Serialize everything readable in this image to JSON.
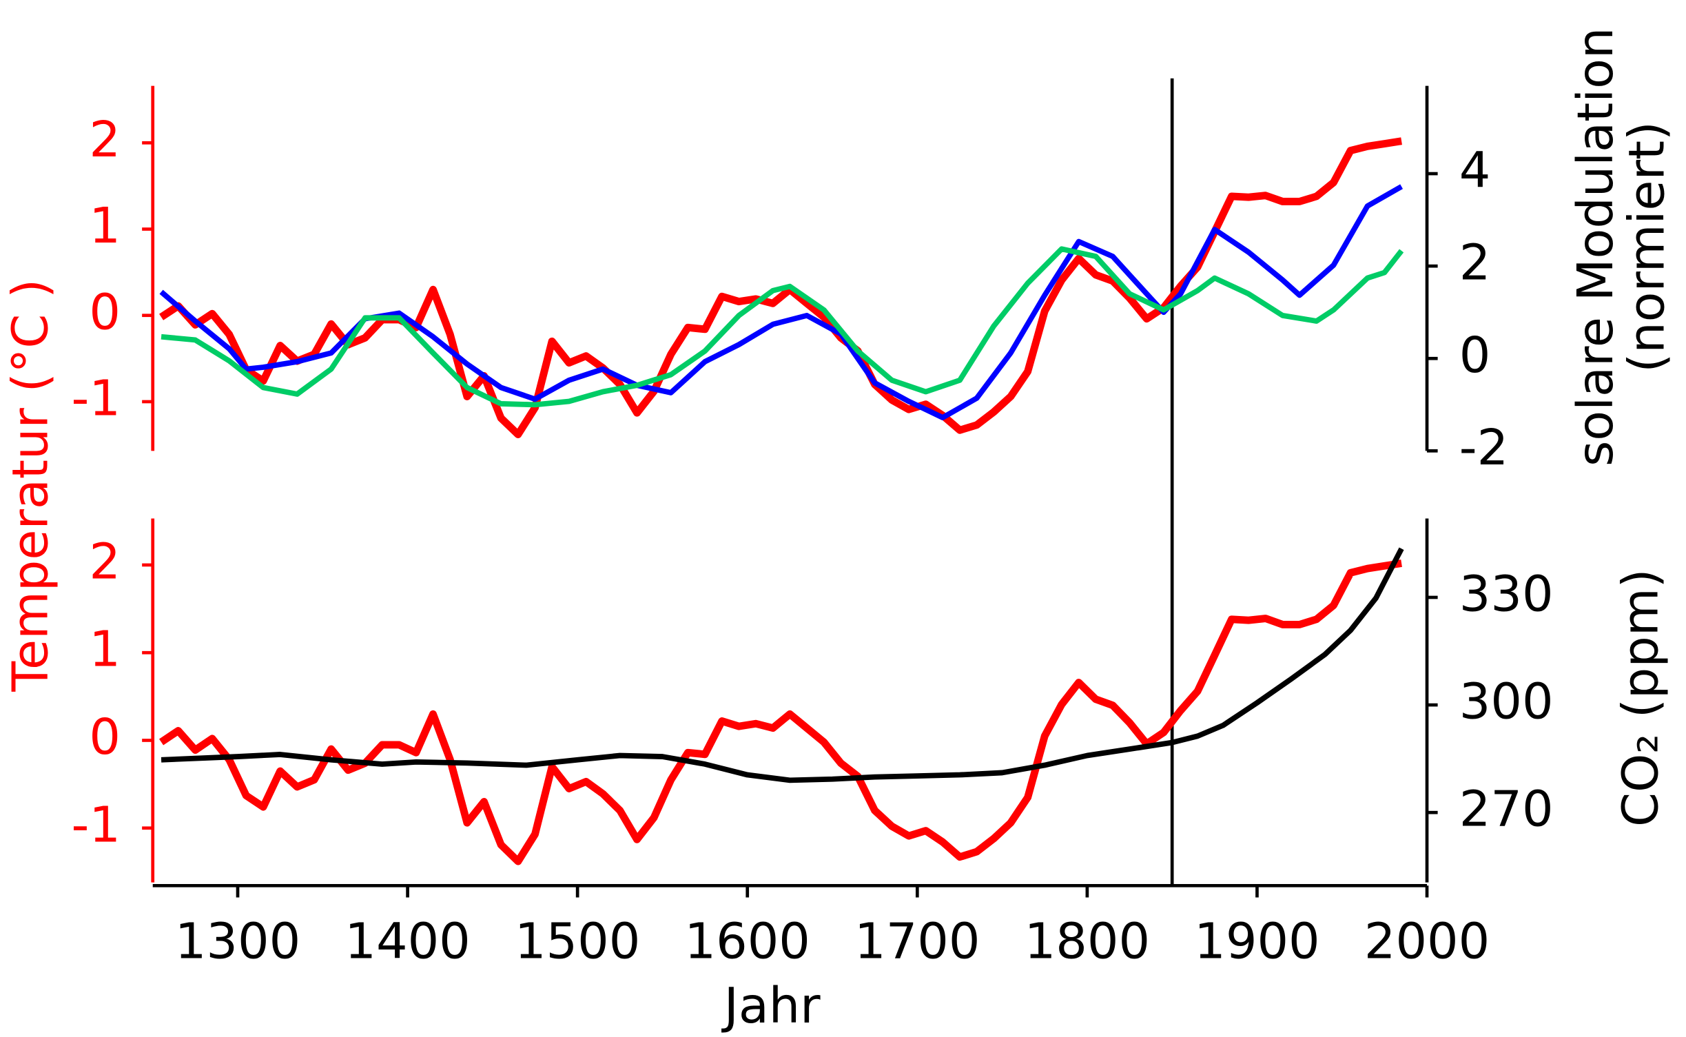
{
  "chart_data": [
    {
      "type": "line",
      "ylabel": "Temperatur (°C )",
      "y2label": [
        "solare Modulation",
        "(normiert)"
      ],
      "xlim": [
        1250,
        2000
      ],
      "ylim": [
        -1.57,
        2.66
      ],
      "yticks": [
        -1,
        0,
        1,
        2
      ],
      "y2lim": [
        -2,
        5.9
      ],
      "y2ticks": [
        -2,
        0,
        2,
        4
      ],
      "vline": 1850,
      "series": [
        {
          "name": "Temperatur",
          "color": "#ff0000",
          "x": [
            1255,
            1265,
            1275,
            1285,
            1295,
            1305,
            1315,
            1325,
            1335,
            1345,
            1355,
            1365,
            1375,
            1385,
            1395,
            1405,
            1415,
            1425,
            1435,
            1445,
            1455,
            1465,
            1475,
            1485,
            1495,
            1505,
            1515,
            1525,
            1535,
            1545,
            1555,
            1565,
            1575,
            1585,
            1595,
            1605,
            1615,
            1625,
            1635,
            1645,
            1655,
            1665,
            1675,
            1685,
            1695,
            1705,
            1715,
            1725,
            1735,
            1745,
            1755,
            1765,
            1775,
            1785,
            1795,
            1805,
            1815,
            1825,
            1835,
            1845,
            1855,
            1865,
            1875,
            1885,
            1895,
            1905,
            1915,
            1925,
            1935,
            1945,
            1955,
            1965,
            1975,
            1985
          ],
          "values": [
            -0.02,
            0.11,
            -0.11,
            0.02,
            -0.22,
            -0.63,
            -0.76,
            -0.35,
            -0.53,
            -0.45,
            -0.1,
            -0.34,
            -0.26,
            -0.05,
            -0.05,
            -0.14,
            0.3,
            -0.22,
            -0.94,
            -0.7,
            -1.19,
            -1.38,
            -1.07,
            -0.3,
            -0.55,
            -0.47,
            -0.61,
            -0.8,
            -1.13,
            -0.88,
            -0.45,
            -0.14,
            -0.16,
            0.22,
            0.16,
            0.19,
            0.14,
            0.3,
            0.14,
            -0.02,
            -0.26,
            -0.41,
            -0.8,
            -0.98,
            -1.09,
            -1.03,
            -1.16,
            -1.33,
            -1.27,
            -1.12,
            -0.94,
            -0.65,
            0.05,
            0.41,
            0.66,
            0.47,
            0.4,
            0.2,
            -0.04,
            0.09,
            0.34,
            0.56,
            0.97,
            1.38,
            1.37,
            1.39,
            1.32,
            1.32,
            1.38,
            1.54,
            1.91,
            1.96,
            1.99,
            2.02
          ]
        },
        {
          "color": "#0000ff",
          "axis": "y2",
          "x": [
            1255,
            1275,
            1295,
            1305,
            1315,
            1335,
            1355,
            1375,
            1395,
            1415,
            1435,
            1455,
            1475,
            1495,
            1515,
            1535,
            1555,
            1575,
            1595,
            1615,
            1635,
            1655,
            1675,
            1695,
            1715,
            1735,
            1755,
            1775,
            1795,
            1815,
            1835,
            1845,
            1855,
            1875,
            1895,
            1915,
            1925,
            1945,
            1965,
            1985
          ],
          "values": [
            1.44,
            0.81,
            0.21,
            -0.23,
            -0.19,
            -0.07,
            0.12,
            0.86,
            0.98,
            0.47,
            -0.12,
            -0.63,
            -0.88,
            -0.47,
            -0.23,
            -0.58,
            -0.74,
            -0.07,
            0.3,
            0.74,
            0.93,
            0.53,
            -0.53,
            -0.93,
            -1.28,
            -0.86,
            0.12,
            1.37,
            2.53,
            2.21,
            1.4,
            1.0,
            1.4,
            2.79,
            2.3,
            1.7,
            1.37,
            2.02,
            3.3,
            3.72
          ]
        },
        {
          "color": "#00cc66",
          "axis": "y2",
          "x": [
            1255,
            1275,
            1295,
            1315,
            1335,
            1355,
            1375,
            1395,
            1415,
            1435,
            1455,
            1475,
            1495,
            1515,
            1535,
            1555,
            1575,
            1595,
            1615,
            1625,
            1645,
            1665,
            1685,
            1705,
            1725,
            1745,
            1765,
            1785,
            1805,
            1825,
            1845,
            1865,
            1875,
            1895,
            1915,
            1935,
            1945,
            1965,
            1975,
            1985
          ],
          "values": [
            0.47,
            0.4,
            -0.05,
            -0.63,
            -0.77,
            -0.23,
            0.88,
            0.88,
            0.12,
            -0.63,
            -0.98,
            -1.0,
            -0.93,
            -0.72,
            -0.58,
            -0.35,
            0.16,
            0.93,
            1.47,
            1.56,
            1.05,
            0.16,
            -0.47,
            -0.72,
            -0.47,
            0.7,
            1.63,
            2.37,
            2.21,
            1.4,
            1.05,
            1.47,
            1.74,
            1.4,
            0.93,
            0.81,
            1.05,
            1.74,
            1.86,
            2.33
          ]
        }
      ]
    },
    {
      "type": "line",
      "y2label": "CO₂  (ppm)",
      "xlabel": "Jahr",
      "xlim": [
        1250,
        2000
      ],
      "xticks": [
        1300,
        1400,
        1500,
        1600,
        1700,
        1800,
        1900,
        2000
      ],
      "ylim": [
        -1.62,
        2.53
      ],
      "yticks": [
        -1,
        0,
        1,
        2
      ],
      "y2lim": [
        250.5,
        352
      ],
      "y2ticks": [
        270,
        300,
        330
      ],
      "series": [
        {
          "name": "Temperatur",
          "color": "#ff0000",
          "x": [
            1255,
            1265,
            1275,
            1285,
            1295,
            1305,
            1315,
            1325,
            1335,
            1345,
            1355,
            1365,
            1375,
            1385,
            1395,
            1405,
            1415,
            1425,
            1435,
            1445,
            1455,
            1465,
            1475,
            1485,
            1495,
            1505,
            1515,
            1525,
            1535,
            1545,
            1555,
            1565,
            1575,
            1585,
            1595,
            1605,
            1615,
            1625,
            1635,
            1645,
            1655,
            1665,
            1675,
            1685,
            1695,
            1705,
            1715,
            1725,
            1735,
            1745,
            1755,
            1765,
            1775,
            1785,
            1795,
            1805,
            1815,
            1825,
            1835,
            1845,
            1855,
            1865,
            1875,
            1885,
            1895,
            1905,
            1915,
            1925,
            1935,
            1945,
            1955,
            1965,
            1975,
            1985
          ],
          "values": [
            -0.02,
            0.11,
            -0.11,
            0.02,
            -0.22,
            -0.63,
            -0.76,
            -0.35,
            -0.53,
            -0.45,
            -0.1,
            -0.34,
            -0.26,
            -0.05,
            -0.05,
            -0.14,
            0.3,
            -0.22,
            -0.94,
            -0.7,
            -1.19,
            -1.38,
            -1.07,
            -0.3,
            -0.55,
            -0.47,
            -0.61,
            -0.8,
            -1.13,
            -0.88,
            -0.45,
            -0.14,
            -0.16,
            0.22,
            0.16,
            0.19,
            0.14,
            0.3,
            0.14,
            -0.02,
            -0.26,
            -0.41,
            -0.8,
            -0.98,
            -1.09,
            -1.03,
            -1.16,
            -1.33,
            -1.27,
            -1.12,
            -0.94,
            -0.65,
            0.05,
            0.41,
            0.66,
            0.47,
            0.4,
            0.2,
            -0.04,
            0.09,
            0.34,
            0.56,
            0.97,
            1.38,
            1.37,
            1.39,
            1.32,
            1.32,
            1.38,
            1.54,
            1.91,
            1.96,
            1.99,
            2.02
          ]
        },
        {
          "color": "#000000",
          "axis": "y2",
          "x": [
            1255,
            1300,
            1325,
            1355,
            1385,
            1405,
            1435,
            1470,
            1500,
            1525,
            1550,
            1575,
            1600,
            1625,
            1650,
            1675,
            1700,
            1725,
            1750,
            1775,
            1800,
            1825,
            1850,
            1865,
            1880,
            1900,
            1920,
            1940,
            1955,
            1970,
            1985
          ],
          "values": [
            284.7,
            285.6,
            286.2,
            284.7,
            283.5,
            284.1,
            283.8,
            283.2,
            284.7,
            285.9,
            285.6,
            283.5,
            280.5,
            279,
            279.3,
            279.9,
            280.2,
            280.5,
            281.1,
            283.2,
            285.9,
            287.7,
            289.5,
            291.3,
            294.3,
            300.6,
            307.2,
            314.1,
            320.8,
            329.8,
            343.6
          ]
        }
      ]
    }
  ]
}
